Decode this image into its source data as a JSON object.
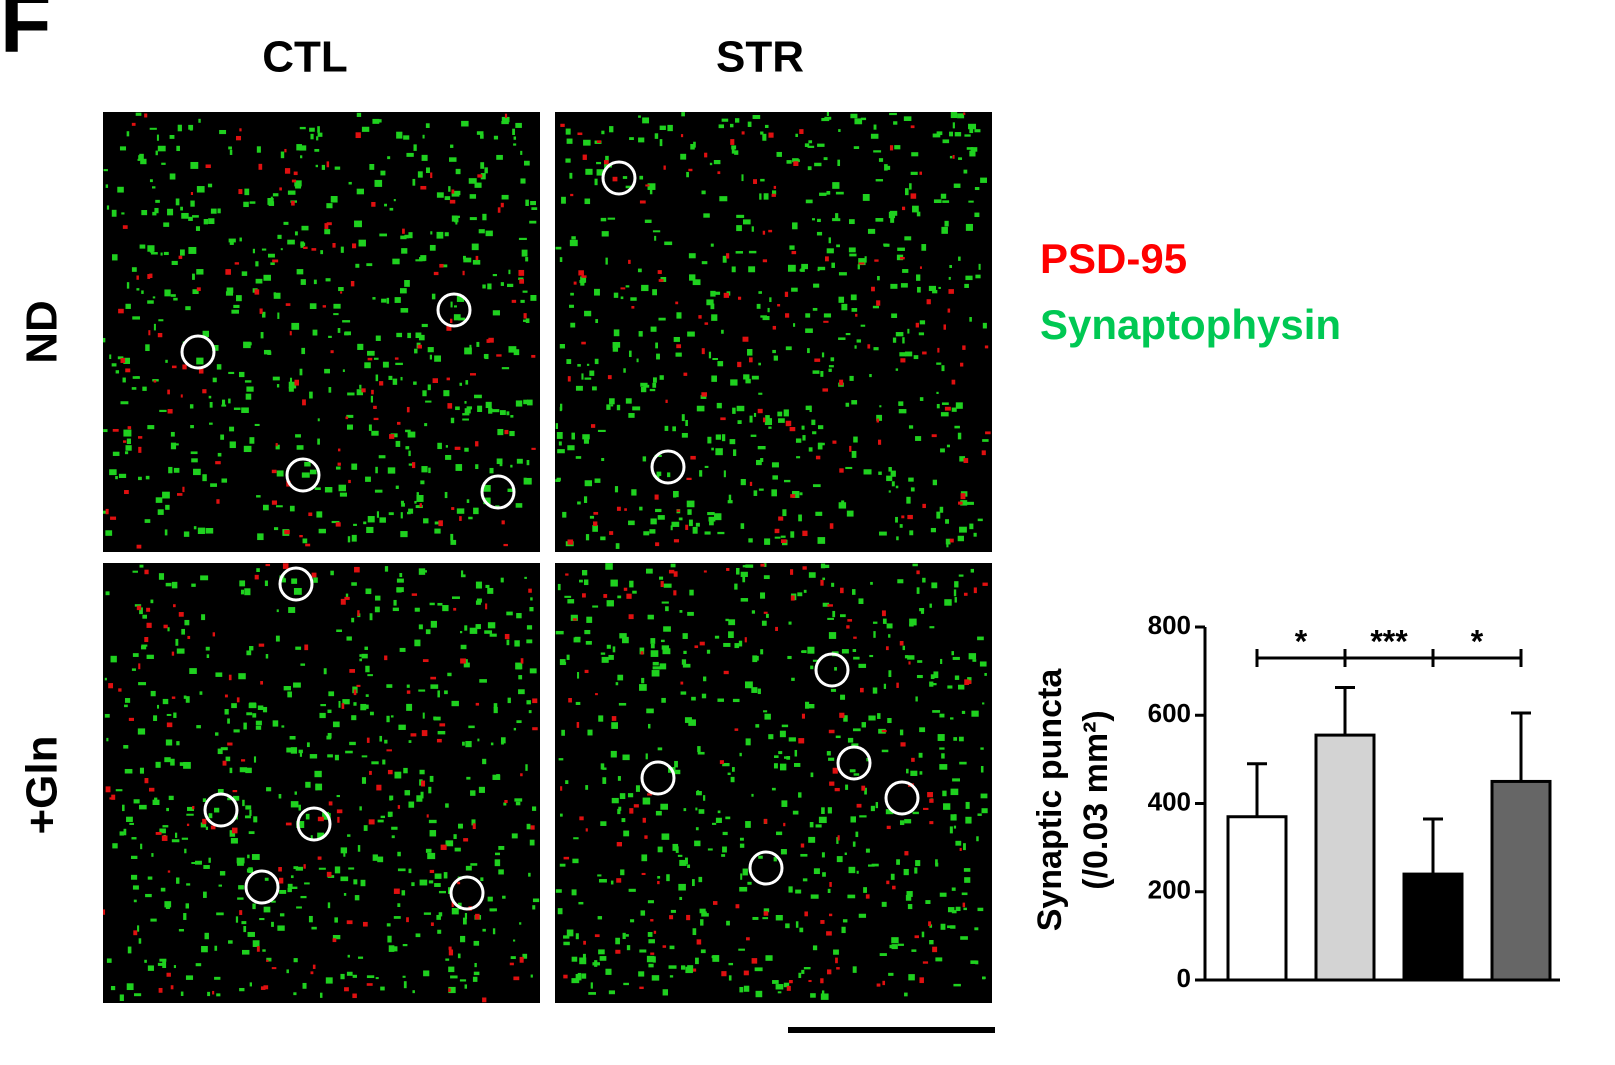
{
  "figure": {
    "panel_label": "F",
    "columns": [
      "CTL",
      "STR"
    ],
    "rows": [
      "ND",
      "+Gln"
    ],
    "legend": [
      {
        "text": "PSD-95",
        "color": "#ff0000"
      },
      {
        "text": "Synaptophysin",
        "color": "#00c853"
      }
    ]
  },
  "chart_data": {
    "type": "bar",
    "y_label": [
      "Synaptic puncta",
      "(/0.03 mm²)"
    ],
    "categories": [
      null,
      null,
      null,
      null
    ],
    "values": [
      370,
      555,
      240,
      450
    ],
    "errors": [
      120,
      108,
      125,
      155
    ],
    "colors": [
      "#ffffff",
      "#d3d3d3",
      "#000000",
      "#666666"
    ],
    "ylim": [
      0,
      800
    ],
    "yticks": [
      0,
      200,
      400,
      600,
      800
    ],
    "annotations": [
      {
        "text": "*",
        "between": [
          0,
          1
        ]
      },
      {
        "text": "***",
        "between": [
          1,
          2
        ]
      },
      {
        "text": "*",
        "between": [
          2,
          3
        ]
      }
    ]
  }
}
